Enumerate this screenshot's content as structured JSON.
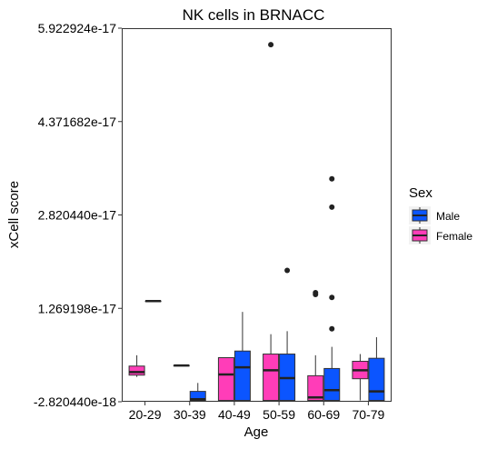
{
  "chart_data": {
    "type": "box",
    "title": "NK cells in BRNACC",
    "xlabel": "Age",
    "ylabel": "xCell score",
    "categories": [
      "20-29",
      "30-39",
      "40-49",
      "50-59",
      "60-69",
      "70-79"
    ],
    "y_ticks": [
      -2.82044e-18,
      1.269198e-17,
      2.82044e-17,
      4.371682e-17,
      5.922924e-17
    ],
    "y_tick_labels": [
      "-2.820440e-18",
      "1.269198e-17",
      "2.820440e-17",
      "4.371682e-17",
      "5.922924e-17"
    ],
    "ylim": [
      -2.82044e-18,
      5.922924e-17
    ],
    "grid": false,
    "legend": {
      "title": "Sex",
      "position": "right",
      "entries": [
        {
          "name": "Male",
          "color": "#0b55ff"
        },
        {
          "name": "Female",
          "color": "#ff3db8"
        }
      ]
    },
    "series": [
      {
        "name": "Female",
        "color": "#ff3db8",
        "boxes": [
          {
            "category": "20-29",
            "whisker_low": 1.3e-18,
            "q1": 1.6e-18,
            "median": 2.1e-18,
            "q3": 3.1e-18,
            "whisker_high": 4.9e-18,
            "outliers": []
          },
          {
            "category": "30-39",
            "whisker_low": 3.2e-18,
            "q1": 3.2e-18,
            "median": 3.2e-18,
            "q3": 3.2e-18,
            "whisker_high": 3.2e-18,
            "outliers": []
          },
          {
            "category": "40-49",
            "whisker_low": -2.6e-18,
            "q1": -2.6e-18,
            "median": 1.7e-18,
            "q3": 4.5e-18,
            "whisker_high": 4.5e-18,
            "outliers": []
          },
          {
            "category": "50-59",
            "whisker_low": -2.6e-18,
            "q1": -2.6e-18,
            "median": 2.4e-18,
            "q3": 5.1e-18,
            "whisker_high": 8.4e-18,
            "outliers": [
              5.65e-17
            ]
          },
          {
            "category": "60-69",
            "whisker_low": -2.6e-18,
            "q1": -2.6e-18,
            "median": -2.1e-18,
            "q3": 1.5e-18,
            "whisker_high": 4.9e-18,
            "outliers": [
              1.5e-17,
              1.53e-17
            ]
          },
          {
            "category": "70-79",
            "whisker_low": -2.6e-18,
            "q1": 1e-18,
            "median": 2.4e-18,
            "q3": 3.9e-18,
            "whisker_high": 5.1e-18,
            "outliers": []
          }
        ]
      },
      {
        "name": "Male",
        "color": "#0b55ff",
        "boxes": [
          {
            "category": "20-29",
            "whisker_low": 1.39e-17,
            "q1": 1.39e-17,
            "median": 1.39e-17,
            "q3": 1.39e-17,
            "whisker_high": 1.39e-17,
            "outliers": []
          },
          {
            "category": "30-39",
            "whisker_low": -2.6e-18,
            "q1": -2.6e-18,
            "median": -2.4e-18,
            "q3": -1.1e-18,
            "whisker_high": 3e-19,
            "outliers": []
          },
          {
            "category": "40-49",
            "whisker_low": -2.6e-18,
            "q1": -2.6e-18,
            "median": 2.9e-18,
            "q3": 5.6e-18,
            "whisker_high": 1.21e-17,
            "outliers": []
          },
          {
            "category": "50-59",
            "whisker_low": -2.6e-18,
            "q1": -2.6e-18,
            "median": 1.1e-18,
            "q3": 5.1e-18,
            "whisker_high": 8.9e-18,
            "outliers": [
              1.9e-17
            ]
          },
          {
            "category": "60-69",
            "whisker_low": -2.6e-18,
            "q1": -2.6e-18,
            "median": -9e-19,
            "q3": 2.7e-18,
            "whisker_high": 6.3e-18,
            "outliers": [
              9.3e-18,
              1.45e-17,
              2.95e-17,
              3.42e-17
            ]
          },
          {
            "category": "70-79",
            "whisker_low": -2.6e-18,
            "q1": -2.6e-18,
            "median": -1.1e-18,
            "q3": 4.4e-18,
            "whisker_high": 7.9e-18,
            "outliers": []
          }
        ]
      }
    ]
  }
}
